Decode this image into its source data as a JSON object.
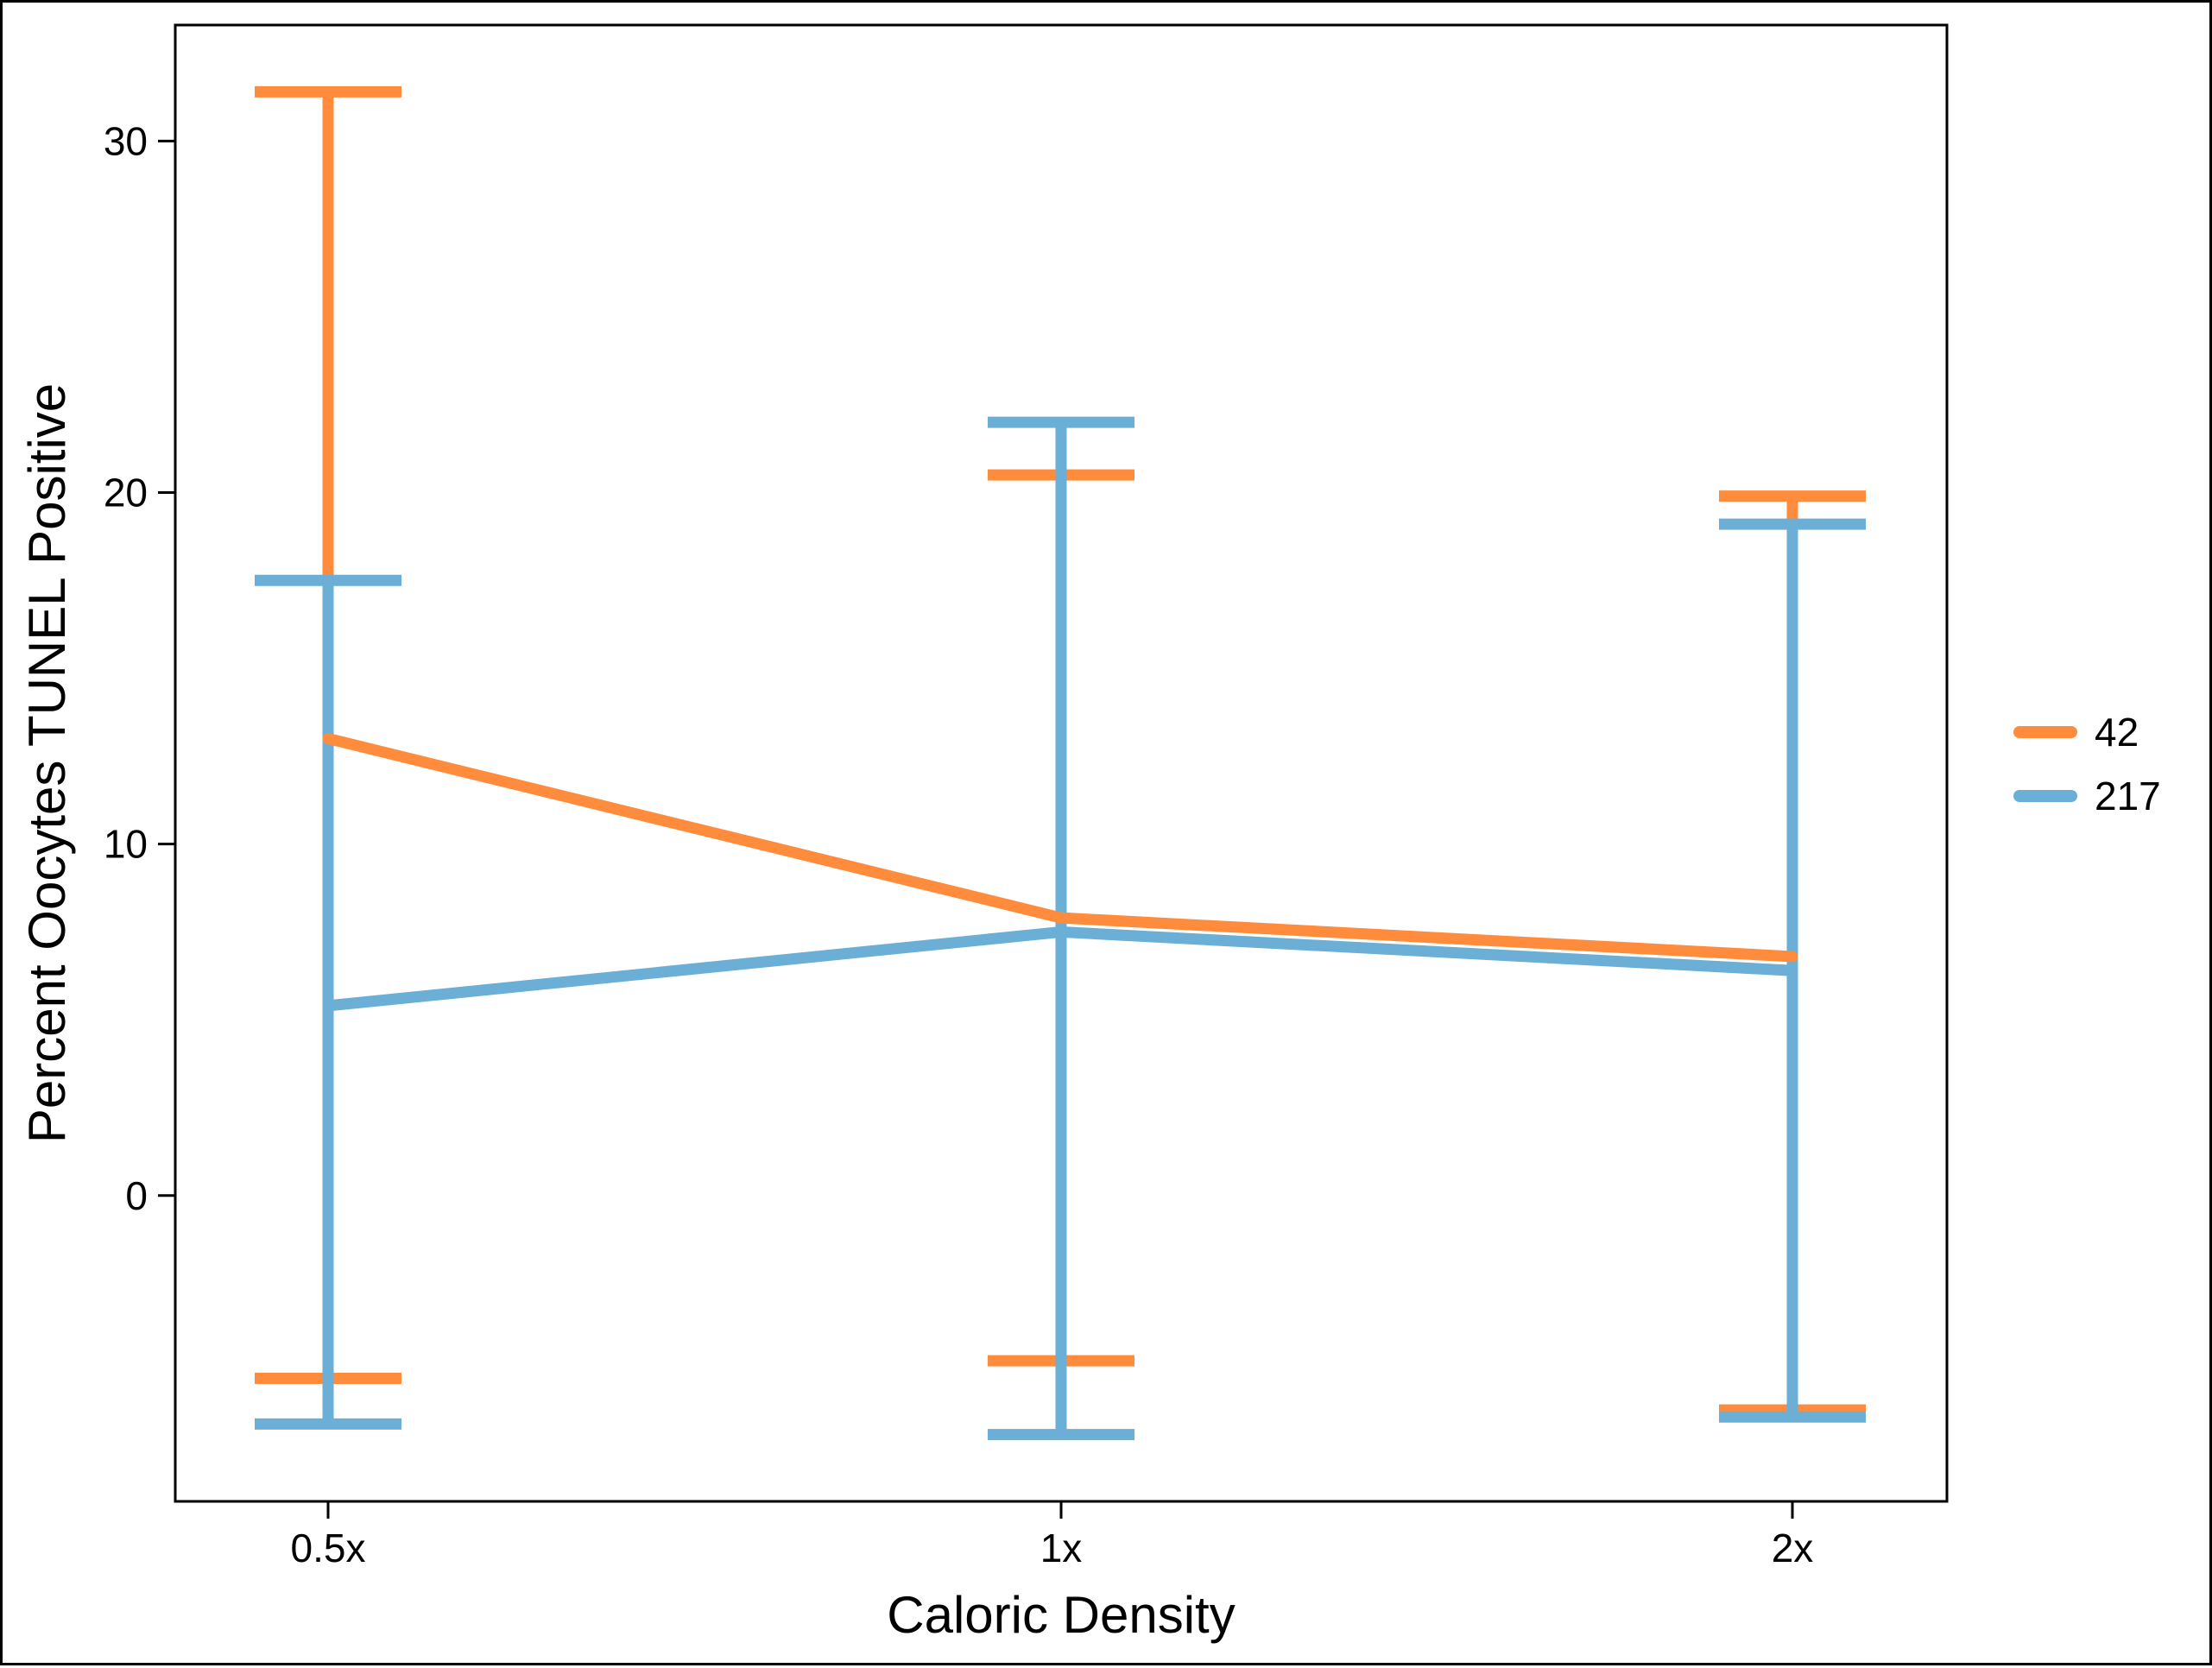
{
  "chart_data": {
    "type": "line",
    "title": "",
    "xlabel": "Caloric Density",
    "ylabel": "Percent Oocytes TUNEL Positive",
    "categories": [
      "0.5x",
      "1x",
      "2x"
    ],
    "ylim": [
      -8.7,
      33.3
    ],
    "yticks": [
      0,
      10,
      20,
      30
    ],
    "grid": false,
    "legend": "right",
    "series": [
      {
        "name": "42",
        "color": "#FF8C3C",
        "values": [
          13.0,
          7.9,
          6.8
        ],
        "upper": [
          31.4,
          20.5,
          19.9
        ],
        "lower": [
          -5.2,
          -4.7,
          -6.1
        ]
      },
      {
        "name": "217",
        "color": "#6BAED6",
        "values": [
          5.4,
          7.5,
          6.4
        ],
        "upper": [
          17.5,
          22.0,
          19.1
        ],
        "lower": [
          -6.5,
          -6.8,
          -6.3
        ]
      }
    ]
  }
}
